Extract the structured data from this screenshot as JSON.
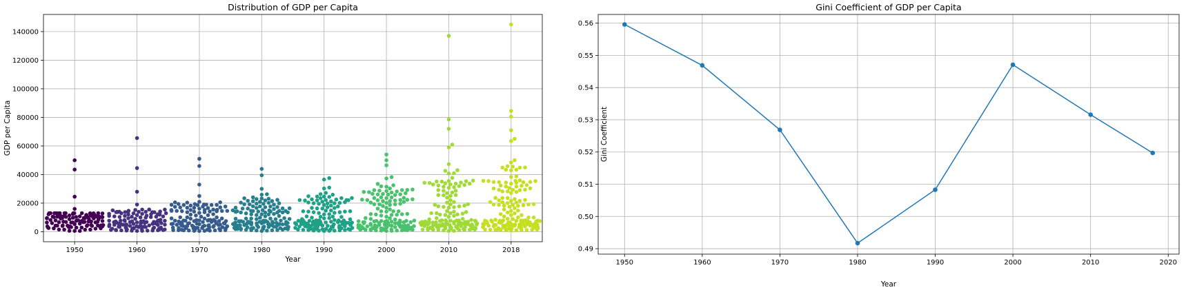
{
  "chart_data": [
    {
      "type": "swarm",
      "title": "Distribution of GDP per Capita",
      "xlabel": "Year",
      "ylabel": "GDP per Capita",
      "categories": [
        "1950",
        "1960",
        "1970",
        "1980",
        "1990",
        "2000",
        "2010",
        "2018"
      ],
      "ylim": [
        -7000,
        152000
      ],
      "yticks": [
        0,
        20000,
        40000,
        60000,
        80000,
        100000,
        120000,
        140000
      ],
      "grid": true,
      "palette": [
        "#440154",
        "#46327e",
        "#365c8d",
        "#277f8e",
        "#1fa187",
        "#4ac16d",
        "#a0da39",
        "#c5e021"
      ],
      "groups": [
        {
          "category": "1950",
          "n": 110,
          "outliers": [
            50000,
            43500,
            24500,
            16000
          ],
          "body_max": 13000
        },
        {
          "category": "1960",
          "n": 120,
          "outliers": [
            65500,
            44500,
            28000,
            19000
          ],
          "body_max": 15500
        },
        {
          "category": "1970",
          "n": 125,
          "outliers": [
            51000,
            46000,
            33000,
            25000
          ],
          "body_max": 22000
        },
        {
          "category": "1980",
          "n": 140,
          "outliers": [
            44000,
            39500,
            30000
          ],
          "body_max": 27000
        },
        {
          "category": "1990",
          "n": 145,
          "outliers": [
            37500,
            36500
          ],
          "body_max": 31000
        },
        {
          "category": "2000",
          "n": 150,
          "outliers": [
            54000,
            50000,
            46500
          ],
          "body_max": 40000
        },
        {
          "category": "2010",
          "n": 160,
          "outliers": [
            137000,
            78500,
            72000,
            61000,
            59000
          ],
          "body_max": 50000
        },
        {
          "category": "2018",
          "n": 165,
          "outliers": [
            145000,
            84500,
            80500,
            71000,
            65000,
            63500
          ],
          "body_max": 51000
        }
      ]
    },
    {
      "type": "line",
      "title": "Gini Coefficient of GDP per Capita",
      "xlabel": "Year",
      "ylabel": "Gini Coefficient",
      "x": [
        1950,
        1960,
        1970,
        1980,
        1990,
        2000,
        2010,
        2018
      ],
      "y": [
        0.5596,
        0.5469,
        0.5269,
        0.4917,
        0.5083,
        0.5471,
        0.5316,
        0.5197
      ],
      "xlim": [
        1946.6,
        2021.4
      ],
      "ylim": [
        0.4883,
        0.5627
      ],
      "xticks": [
        1950,
        1960,
        1970,
        1980,
        1990,
        2000,
        2010,
        2020
      ],
      "yticks": [
        0.49,
        0.5,
        0.51,
        0.52,
        0.53,
        0.54,
        0.55,
        0.56
      ],
      "color": "#1f77b4",
      "marker": "o",
      "grid": true
    }
  ]
}
